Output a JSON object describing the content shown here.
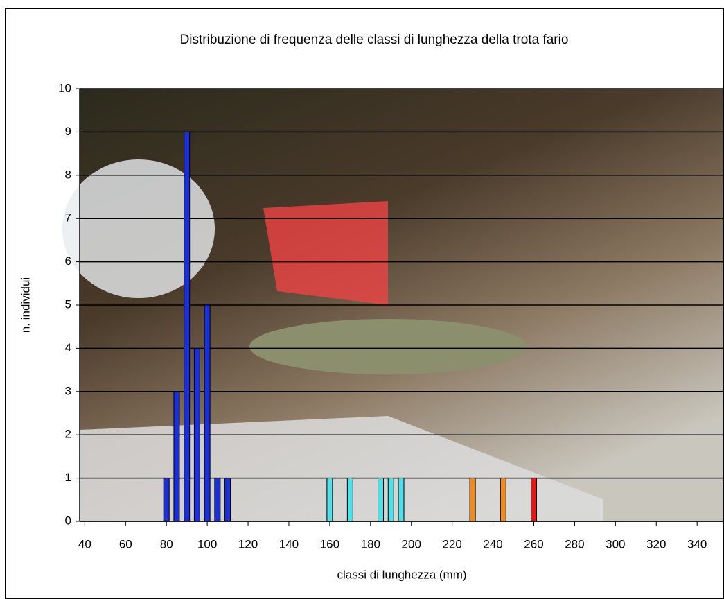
{
  "chart_data": {
    "type": "bar",
    "title": "Distribuzione di frequenza delle classi di lunghezza della trota fario",
    "x_label": "classi di lunghezza (mm)",
    "y_label": "n. individui",
    "series": [
      {
        "color": "#1a2fd8",
        "x": [
          80,
          85,
          90,
          95,
          100,
          105,
          110
        ],
        "values": [
          1,
          3,
          9,
          4,
          5,
          1,
          1
        ]
      },
      {
        "color": "#4fe0e8",
        "x": [
          160,
          170,
          185,
          190,
          195
        ],
        "values": [
          1,
          1,
          1,
          1,
          1
        ]
      },
      {
        "color": "#f08a1c",
        "x": [
          230,
          245
        ],
        "values": [
          1,
          1
        ]
      },
      {
        "color": "#e01818",
        "x": [
          260
        ],
        "values": [
          1
        ]
      }
    ],
    "xlim": [
      37.5,
      352.5
    ],
    "xticks": [
      40,
      60,
      80,
      100,
      120,
      140,
      160,
      180,
      200,
      220,
      240,
      260,
      280,
      300,
      320,
      340
    ],
    "ylim": [
      0,
      10
    ],
    "yticks": [
      0,
      1,
      2,
      3,
      4,
      5,
      6,
      7,
      8,
      9,
      10
    ],
    "grid": true
  }
}
